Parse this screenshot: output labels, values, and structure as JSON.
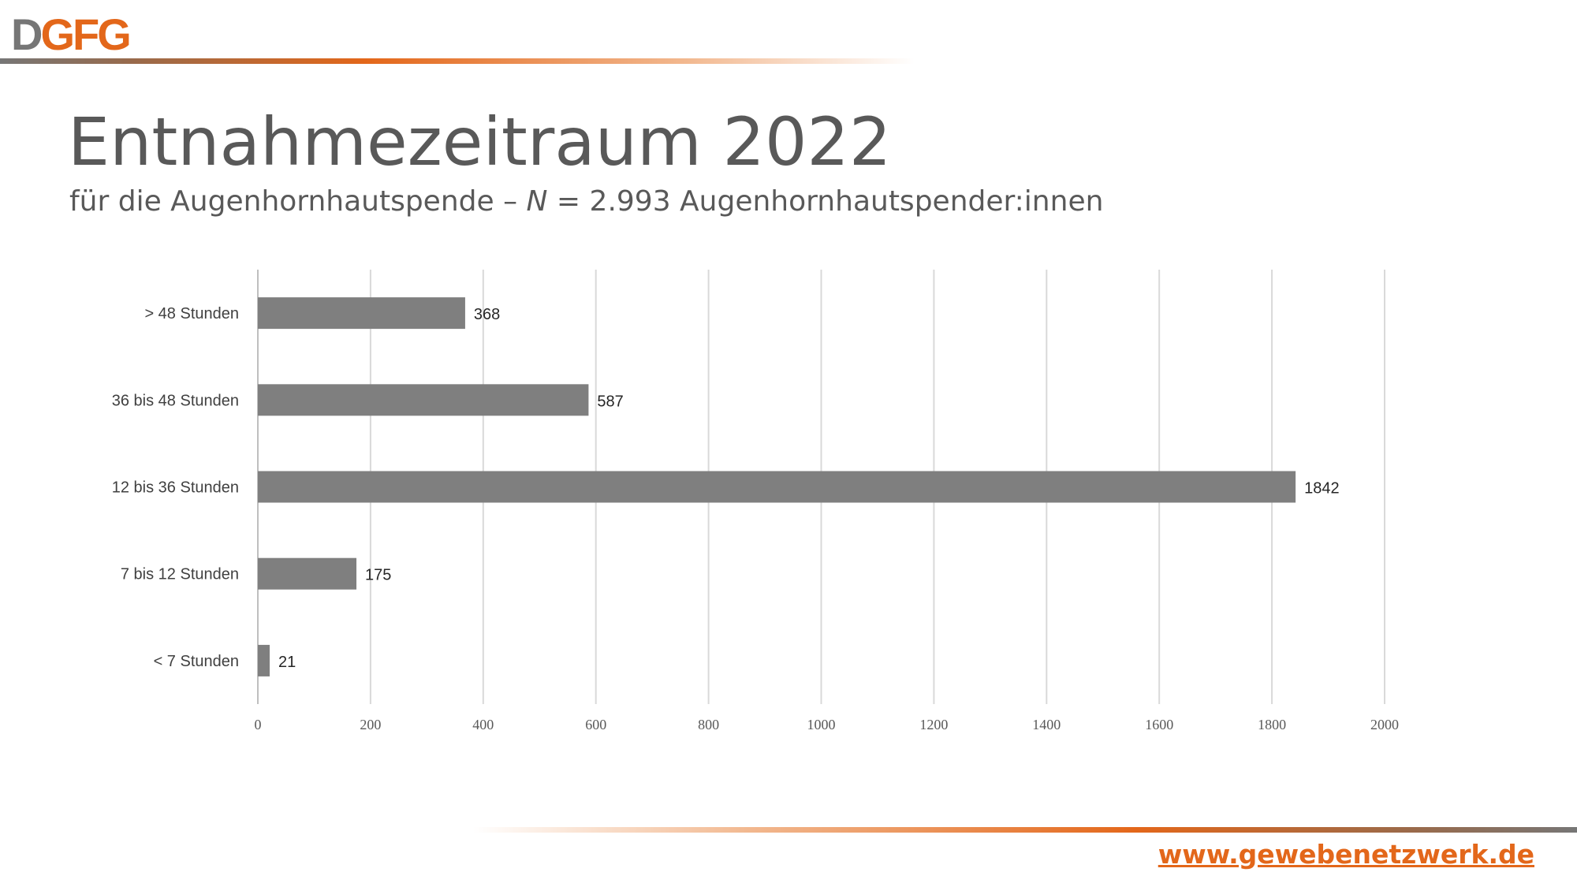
{
  "header": {
    "logo_d": "D",
    "logo_rest": "GFG"
  },
  "slide": {
    "title": "Entnahmezeitraum 2022",
    "subtitle_prefix": "für die Augenhornhautspende – ",
    "subtitle_n": "N",
    "subtitle_suffix": " = 2.993 Augenhornhautspender:innen"
  },
  "footer": {
    "url": "www.gewebenetzwerk.de"
  },
  "colors": {
    "accent": "#e3671a",
    "logo_gray": "#767676",
    "bar": "#7f7f7f",
    "grid": "#d9d9d9",
    "text": "#595959"
  },
  "chart_data": {
    "type": "bar",
    "orientation": "horizontal",
    "categories": [
      "> 48 Stunden",
      "36 bis 48 Stunden",
      "12 bis 36 Stunden",
      "7 bis 12 Stunden",
      "< 7 Stunden"
    ],
    "values": [
      368,
      587,
      1842,
      175,
      21
    ],
    "xlim": [
      0,
      2000
    ],
    "xticks": [
      0,
      200,
      400,
      600,
      800,
      1000,
      1200,
      1400,
      1600,
      1800,
      2000
    ],
    "grid": "vertical",
    "legend": "none",
    "data_labels": true
  }
}
